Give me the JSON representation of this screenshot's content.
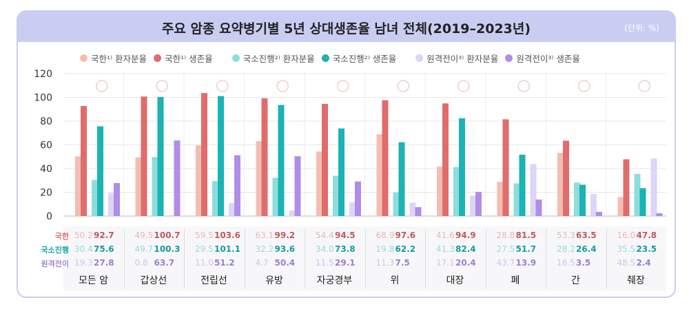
{
  "title": "주요 암종 요약병기별 5년 상대생존율 남녀 전체(2019–2023년)",
  "unit": "(단위: %)",
  "colors": {
    "local_patient": "#f4bdb2",
    "local_survival": "#e06c6c",
    "regional_patient": "#8fdcdc",
    "regional_survival": "#1bb3b3",
    "distant_patient": "#ddd5f7",
    "distant_survival": "#b08de8"
  },
  "row_labels": [
    "국한",
    "국소진행",
    "원격전이"
  ],
  "chart_data": {
    "type": "bar",
    "title": "주요 암종 요약병기별 5년 상대생존율 남녀 전체(2019–2023년)",
    "ylim": [
      0,
      120
    ],
    "yticks": [
      "0",
      "20",
      "40",
      "60",
      "80",
      "100",
      "120"
    ],
    "categories": [
      "모든 암",
      "갑상선",
      "전립선",
      "유방",
      "자궁경부",
      "위",
      "대장",
      "폐",
      "간",
      "췌장"
    ],
    "icons": [
      "heart-icon",
      "thyroid-icon",
      "prostate-icon",
      "breast-icon",
      "uterus-icon",
      "stomach-icon",
      "colon-icon",
      "lung-icon",
      "liver-icon",
      "pancreas-icon"
    ],
    "series": [
      {
        "name": "국한¹⁾ 환자분율",
        "key": "local_patient",
        "values": [
          50.2,
          49.5,
          59.5,
          63.1,
          54.4,
          68.9,
          41.6,
          28.8,
          53.3,
          16.0
        ]
      },
      {
        "name": "국한¹⁾ 생존율",
        "key": "local_survival",
        "values": [
          92.7,
          100.7,
          103.6,
          99.2,
          94.5,
          97.6,
          94.9,
          81.5,
          63.5,
          47.8
        ]
      },
      {
        "name": "국소진행²⁾ 환자분율",
        "key": "regional_patient",
        "values": [
          30.4,
          49.7,
          29.5,
          32.2,
          34.0,
          19.8,
          41.3,
          27.5,
          28.2,
          35.5
        ]
      },
      {
        "name": "국소진행²⁾ 생존율",
        "key": "regional_survival",
        "values": [
          75.6,
          100.3,
          101.1,
          93.6,
          73.8,
          62.2,
          82.4,
          51.7,
          26.4,
          23.5
        ]
      },
      {
        "name": "원격전이³⁾ 환자분율",
        "key": "distant_patient",
        "values": [
          19.3,
          0.8,
          11.0,
          4.7,
          11.5,
          11.3,
          17.1,
          43.7,
          18.5,
          48.5
        ]
      },
      {
        "name": "원격전이³⁾ 생존율",
        "key": "distant_survival",
        "values": [
          27.8,
          63.7,
          51.2,
          50.4,
          29.1,
          7.5,
          20.4,
          13.9,
          3.5,
          2.4
        ]
      }
    ],
    "labels": {
      "0": [
        "50.2",
        "49.5",
        "59.5",
        "63.1",
        "54.4",
        "68.9",
        "41.6",
        "28.8",
        "53.3",
        "16.0"
      ],
      "1": [
        "92.7",
        "100.7",
        "103.6",
        "99.2",
        "94.5",
        "97.6",
        "94.9",
        "81.5",
        "63.5",
        "47.8"
      ],
      "2": [
        "30.4",
        "49.7",
        "29.5",
        "32.2",
        "34.0",
        "19.8",
        "41.3",
        "27.5",
        "28.2",
        "35.5"
      ],
      "3": [
        "75.6",
        "100.3",
        "101.1",
        "93.6",
        "73.8",
        "62.2",
        "82.4",
        "51.7",
        "26.4",
        "23.5"
      ],
      "4": [
        "19.3",
        "0.8",
        "11.0",
        "4.7",
        "11.5",
        "11.3",
        "17.1",
        "43.7",
        "18.5",
        "48.5"
      ],
      "5": [
        "27.8",
        "63.7",
        "51.2",
        "50.4",
        "29.1",
        "7.5",
        "20.4",
        "13.9",
        "3.5",
        "2.4"
      ]
    }
  }
}
